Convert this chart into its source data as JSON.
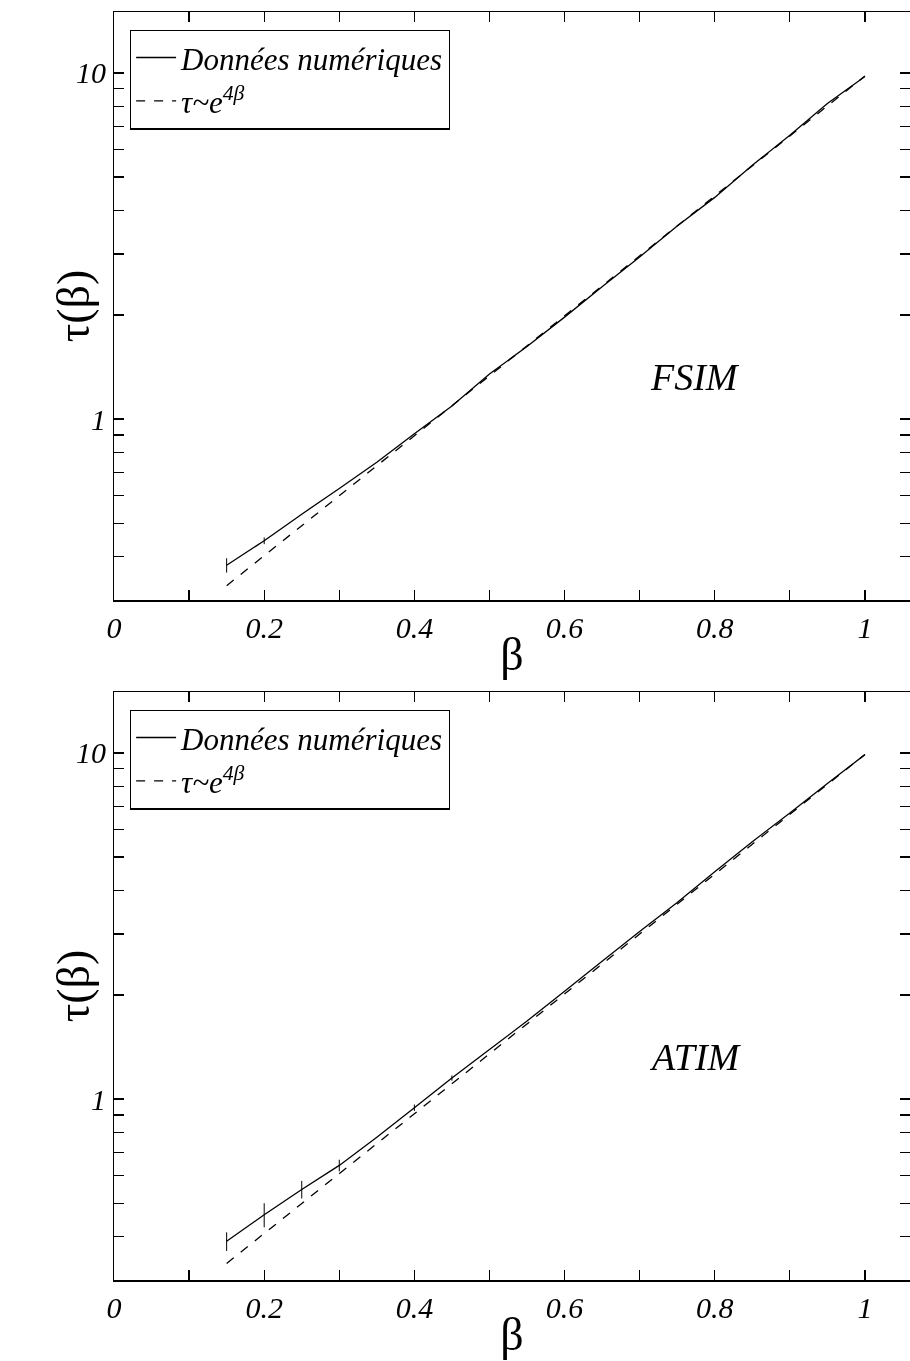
{
  "chart_data": [
    {
      "type": "line",
      "xlabel": "β",
      "ylabel": "τ(β)",
      "annotations": [
        "FSIM"
      ],
      "log": "y",
      "grid": false,
      "legend": "top left",
      "marker": "none",
      "xlim": [
        0,
        1.06
      ],
      "xticks": [
        0,
        {
          "value": 0.1,
          "label": null
        },
        0.2,
        {
          "value": 0.3,
          "label": null
        },
        0.4,
        {
          "value": 0.5,
          "label": null
        },
        0.6,
        {
          "value": 0.7,
          "label": null
        },
        0.8,
        {
          "value": 0.9,
          "label": null
        },
        1
      ],
      "ylim": [
        0.3,
        15
      ],
      "yticks": [
        {
          "value": 0.4,
          "label": null
        },
        {
          "value": 0.5,
          "label": null
        },
        {
          "value": 0.6,
          "label": null
        },
        {
          "value": 0.7,
          "label": null
        },
        {
          "value": 0.8,
          "label": null
        },
        {
          "value": 0.9,
          "label": null
        },
        {
          "value": 1,
          "label": "1"
        },
        {
          "value": 2,
          "label": null
        },
        {
          "value": 3,
          "label": null
        },
        {
          "value": 4,
          "label": null
        },
        {
          "value": 5,
          "label": null
        },
        {
          "value": 6,
          "label": null
        },
        {
          "value": 7,
          "label": null
        },
        {
          "value": 8,
          "label": null
        },
        {
          "value": 9,
          "label": null
        },
        {
          "value": 10,
          "label": "10"
        }
      ],
      "series": [
        {
          "name": "Données numériques",
          "color": "#000000",
          "line_style": "solid",
          "x": [
            0.15,
            0.2,
            0.25,
            0.3,
            0.35,
            0.4,
            0.45,
            0.5,
            0.55,
            0.6,
            0.65,
            0.7,
            0.75,
            0.8,
            0.85,
            0.9,
            0.95,
            1.0
          ],
          "values": [
            0.378,
            0.445,
            0.531,
            0.63,
            0.75,
            0.907,
            1.09,
            1.35,
            1.62,
            1.97,
            2.41,
            2.94,
            3.61,
            4.37,
            5.41,
            6.61,
            8.16,
            9.77
          ],
          "errors": [
            0.018,
            0.01,
            null,
            null,
            null,
            null,
            null,
            null,
            null,
            null,
            null,
            null,
            null,
            null,
            null,
            null,
            null,
            null
          ]
        },
        {
          "name": "τ~e$^{4β}$",
          "color": "#000000",
          "line_style": "dashed",
          "x": [
            0.15,
            1.0
          ],
          "values": [
            0.33,
            9.8
          ]
        }
      ]
    },
    {
      "type": "line",
      "xlabel": "β",
      "ylabel": "τ(β)",
      "annotations": [
        "ATIM"
      ],
      "log": "y",
      "grid": false,
      "legend": "top left",
      "marker": "none",
      "xlim": [
        0,
        1.06
      ],
      "xticks": [
        0,
        {
          "value": 0.1,
          "label": null
        },
        0.2,
        {
          "value": 0.3,
          "label": null
        },
        0.4,
        {
          "value": 0.5,
          "label": null
        },
        0.6,
        {
          "value": 0.7,
          "label": null
        },
        0.8,
        {
          "value": 0.9,
          "label": null
        },
        1
      ],
      "ylim": [
        0.3,
        15
      ],
      "yticks": [
        {
          "value": 0.4,
          "label": null
        },
        {
          "value": 0.5,
          "label": null
        },
        {
          "value": 0.6,
          "label": null
        },
        {
          "value": 0.7,
          "label": null
        },
        {
          "value": 0.8,
          "label": null
        },
        {
          "value": 0.9,
          "label": null
        },
        {
          "value": 1,
          "label": "1"
        },
        {
          "value": 2,
          "label": null
        },
        {
          "value": 3,
          "label": null
        },
        {
          "value": 4,
          "label": null
        },
        {
          "value": 5,
          "label": null
        },
        {
          "value": 6,
          "label": null
        },
        {
          "value": 7,
          "label": null
        },
        {
          "value": 8,
          "label": null
        },
        {
          "value": 9,
          "label": null
        },
        {
          "value": 10,
          "label": "10"
        }
      ],
      "series": [
        {
          "name": "Données numériques",
          "color": "#000000",
          "line_style": "solid",
          "x": [
            0.15,
            0.2,
            0.25,
            0.3,
            0.35,
            0.4,
            0.45,
            0.5,
            0.55,
            0.6,
            0.65,
            0.7,
            0.75,
            0.8,
            0.85,
            0.9,
            0.95,
            1.0
          ],
          "values": [
            0.388,
            0.463,
            0.548,
            0.643,
            0.776,
            0.944,
            1.15,
            1.39,
            1.68,
            2.05,
            2.5,
            3.05,
            3.7,
            4.54,
            5.54,
            6.71,
            8.16,
            9.89
          ],
          "errors": [
            0.024,
            0.037,
            0.032,
            0.025,
            null,
            0.02,
            0.02,
            null,
            null,
            null,
            null,
            null,
            null,
            null,
            null,
            null,
            null,
            null
          ]
        },
        {
          "name": "τ~e$^{4β}$",
          "color": "#000000",
          "line_style": "dashed",
          "x": [
            0.15,
            1.0
          ],
          "values": [
            0.335,
            9.9
          ]
        }
      ]
    }
  ]
}
